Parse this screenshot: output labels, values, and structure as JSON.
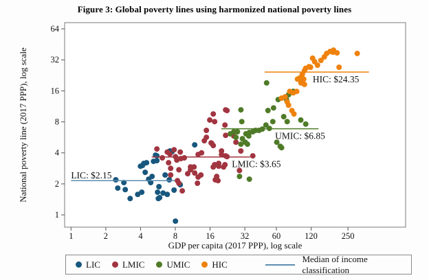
{
  "title": "Figure 3: Global poverty lines using harmonized national poverty lines",
  "chart_data": {
    "type": "scatter",
    "xlabel": "GDP per capita (2017 PPP), log scale",
    "ylabel": "National poverty line (2017 PPP), log scale",
    "x_scale": "log2",
    "y_scale": "log2",
    "x_ticks": [
      1,
      2,
      4,
      8,
      16,
      32,
      60,
      120,
      250
    ],
    "y_ticks": [
      1,
      2,
      4,
      8,
      16,
      32,
      64
    ],
    "x_range": [
      0.88,
      790
    ],
    "y_range": [
      0.76,
      73.5
    ],
    "grid": false,
    "series": [
      {
        "name": "LIC",
        "color": "#18577d",
        "points": [
          [
            2.44,
            2.19
          ],
          [
            2.87,
            2.06
          ],
          [
            2.54,
            1.82
          ],
          [
            2.95,
            1.76
          ],
          [
            3.25,
            1.44
          ],
          [
            3.78,
            1.58
          ],
          [
            4.1,
            1.66
          ],
          [
            4.27,
            3.16
          ],
          [
            3.99,
            2.97
          ],
          [
            4.39,
            2.59
          ],
          [
            4.7,
            2.22
          ],
          [
            4.9,
            2.06
          ],
          [
            5.03,
            2.36
          ],
          [
            5.39,
            3.8
          ],
          [
            5.54,
            3.36
          ],
          [
            5.77,
            1.88
          ],
          [
            5.62,
            1.66
          ],
          [
            5.85,
            1.47
          ],
          [
            7.19,
            4.17
          ],
          [
            8.02,
            0.87
          ],
          [
            8.83,
            1.96
          ],
          [
            7.8,
            1.74
          ],
          [
            6.81,
            1.58
          ],
          [
            6.27,
            1.63
          ],
          [
            5.7,
            1.44
          ],
          [
            5.54,
            3.74
          ],
          [
            7.49,
            4.1
          ],
          [
            11.77,
            4.78
          ],
          [
            4.16,
            3.02
          ],
          [
            4.51,
            3.21
          ],
          [
            5.18,
            3.31
          ],
          [
            6.53,
            2.44
          ],
          [
            7.09,
            2.19
          ]
        ]
      },
      {
        "name": "LMIC",
        "color": "#a13540",
        "points": [
          [
            5.54,
            4.36
          ],
          [
            6.17,
            3.58
          ],
          [
            6.81,
            4.07
          ],
          [
            7.19,
            3.89
          ],
          [
            7.8,
            4.29
          ],
          [
            7.29,
            2.44
          ],
          [
            8.35,
            2.15
          ],
          [
            8.59,
            2.03
          ],
          [
            9.19,
            1.71
          ],
          [
            10.24,
            2.51
          ],
          [
            10.83,
            2.74
          ],
          [
            11.61,
            2.92
          ],
          [
            11.77,
            2.55
          ],
          [
            12.61,
            2.33
          ],
          [
            13.33,
            2.44
          ],
          [
            12.44,
            2.03
          ],
          [
            17.76,
            2.19
          ],
          [
            17.52,
            3.07
          ],
          [
            18.99,
            2.97
          ],
          [
            21.53,
            3.07
          ],
          [
            14.87,
            6.61
          ],
          [
            17.52,
            8.05
          ],
          [
            21.82,
            10.46
          ],
          [
            21.53,
            7.45
          ],
          [
            14.27,
            5.24
          ],
          [
            16.35,
            5.0
          ],
          [
            17.04,
            4.71
          ],
          [
            20.11,
            4.17
          ],
          [
            21.82,
            3.74
          ],
          [
            12.61,
            3.86
          ],
          [
            13.51,
            4.0
          ],
          [
            8.83,
            4.07
          ],
          [
            8.02,
            3.68
          ],
          [
            8.24,
            3.4
          ],
          [
            8.95,
            3.52
          ],
          [
            9.57,
            3.58
          ],
          [
            6.99,
            3.21
          ],
          [
            7.29,
            2.83
          ],
          [
            8.59,
            2.74
          ],
          [
            10.83,
            2.92
          ],
          [
            14.87,
            5.66
          ],
          [
            16.57,
            4.93
          ],
          [
            21.82,
            5.92
          ],
          [
            25.74,
            5.83
          ],
          [
            26.81,
            5.08
          ],
          [
            29.55,
            4.17
          ],
          [
            20.11,
            3.86
          ],
          [
            22.43,
            3.68
          ],
          [
            18.99,
            3.16
          ],
          [
            17.04,
            2.92
          ],
          [
            20.94,
            2.92
          ],
          [
            18.25,
            2.36
          ],
          [
            18.73,
            2.15
          ],
          [
            28.75,
            2.7
          ],
          [
            37.48,
            3.74
          ],
          [
            17.04,
            9.54
          ],
          [
            15.9,
            8.33
          ],
          [
            22.43,
            10.3
          ]
        ]
      },
      {
        "name": "UMIC",
        "color": "#4f7b28",
        "points": [
          [
            56.7,
            10.94
          ],
          [
            62.2,
            13.17
          ],
          [
            73.4,
            13.17
          ],
          [
            76.5,
            14.65
          ],
          [
            84.1,
            15.82
          ],
          [
            69.5,
            8.98
          ],
          [
            74.4,
            8.05
          ],
          [
            55.9,
            8.05
          ],
          [
            48.7,
            7.45
          ],
          [
            52.2,
            6.91
          ],
          [
            45.4,
            6.81
          ],
          [
            42.4,
            6.61
          ],
          [
            39.6,
            6.61
          ],
          [
            37.5,
            6.41
          ],
          [
            35.0,
            6.31
          ],
          [
            32.7,
            6.12
          ],
          [
            30.1,
            8.05
          ],
          [
            29.6,
            10.46
          ],
          [
            27.6,
            6.41
          ],
          [
            25.7,
            6.41
          ],
          [
            26.8,
            5.66
          ],
          [
            30.5,
            5.49
          ],
          [
            32.3,
            5.08
          ],
          [
            33.7,
            4.86
          ],
          [
            60.5,
            5.08
          ],
          [
            64.8,
            4.63
          ],
          [
            34.6,
            5.83
          ],
          [
            29.6,
            4.86
          ],
          [
            66.6,
            4.49
          ],
          [
            28.8,
            2.36
          ],
          [
            35.0,
            2.22
          ],
          [
            24.0,
            6.12
          ],
          [
            49.4,
            19.1
          ],
          [
            50.8,
            10.31
          ],
          [
            97.7,
            8.33
          ],
          [
            107.8,
            7.61
          ]
        ]
      },
      {
        "name": "HIC",
        "color": "#ef820d",
        "points": [
          [
            123.6,
            33.2
          ],
          [
            128.8,
            30.7
          ],
          [
            118.6,
            27.1
          ],
          [
            136.3,
            28.4
          ],
          [
            145.9,
            31.6
          ],
          [
            156.2,
            34.2
          ],
          [
            163.5,
            36.9
          ],
          [
            175.4,
            38.6
          ],
          [
            185.1,
            38.0
          ],
          [
            105.0,
            25.1
          ],
          [
            100.7,
            23.2
          ],
          [
            96.6,
            21.5
          ],
          [
            103.6,
            20.8
          ],
          [
            91.4,
            20.8
          ],
          [
            97.9,
            19.1
          ],
          [
            105.0,
            18.5
          ],
          [
            301.1,
            36.9
          ],
          [
            209.5,
            27.1
          ],
          [
            90.1,
            15.8
          ],
          [
            84.1,
            15.3
          ],
          [
            78.3,
            15.8
          ],
          [
            71.4,
            14.0
          ],
          [
            66.6,
            13.6
          ],
          [
            74.4,
            12.5
          ],
          [
            76.5,
            11.6
          ],
          [
            81.8,
            10.3
          ],
          [
            187.6,
            39.7
          ],
          [
            201.0,
            37.4
          ],
          [
            115.3,
            27.5
          ],
          [
            107.8,
            26.5
          ],
          [
            85.2,
            9.54
          ]
        ]
      }
    ],
    "medians": [
      {
        "group": "LIC",
        "label": "LIC: $2.15",
        "value": 2.15,
        "x_start": 1.0,
        "x_end": 7.9,
        "color": "#5b8db0",
        "label_anchor_x": 1.0,
        "label_position": "above"
      },
      {
        "group": "LMIC",
        "label": "LMIC: $3.65",
        "value": 3.65,
        "x_start": 5.0,
        "x_end": 35.5,
        "color": "#a13540",
        "label_anchor_x": 24.7,
        "label_position": "below"
      },
      {
        "group": "UMIC",
        "label": "UMIC: $6.85",
        "value": 6.85,
        "x_start": 20.0,
        "x_end": 139.0,
        "color": "#4f7b28",
        "label_anchor_x": 58.5,
        "label_position": "below"
      },
      {
        "group": "HIC",
        "label": "HIC: $24.35",
        "value": 24.35,
        "x_start": 47.5,
        "x_end": 380.0,
        "color": "#ef820d",
        "label_anchor_x": 124.0,
        "label_position": "below"
      }
    ],
    "legend": {
      "items": [
        {
          "label": "LIC",
          "color": "#18577d"
        },
        {
          "label": "LMIC",
          "color": "#a13540"
        },
        {
          "label": "UMIC",
          "color": "#4f7b28"
        },
        {
          "label": "HIC",
          "color": "#ef820d"
        }
      ],
      "median_label": "Median of income classification",
      "median_line_color": "#5b8db0",
      "position": "bottom"
    }
  }
}
